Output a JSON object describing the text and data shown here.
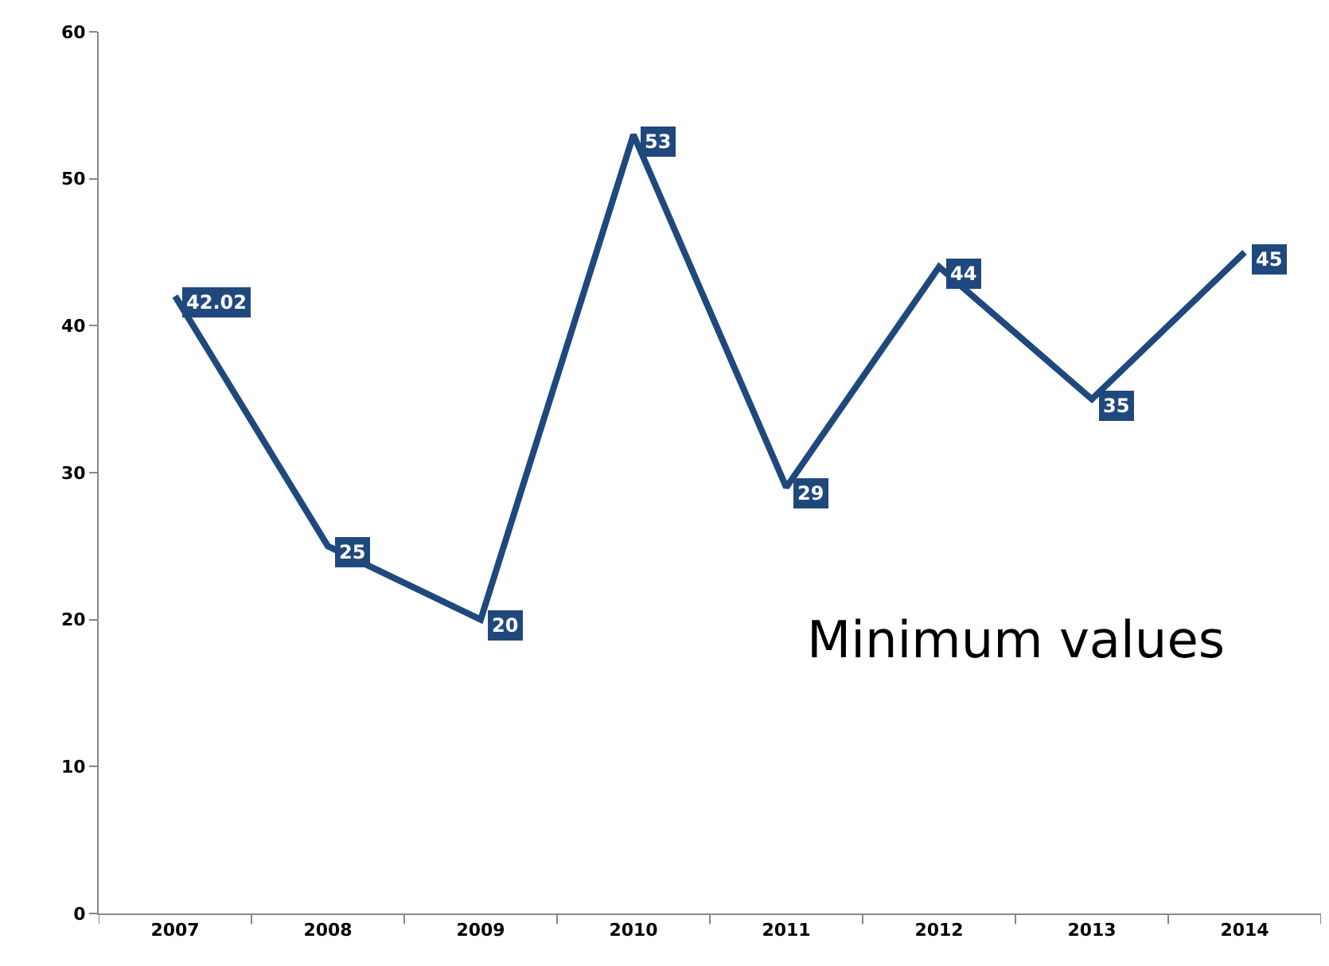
{
  "chart_data": {
    "type": "line",
    "title": "Minimum values",
    "categories": [
      "2007",
      "2008",
      "2009",
      "2010",
      "2011",
      "2012",
      "2013",
      "2014"
    ],
    "series": [
      {
        "color": "#1f497d",
        "values": [
          42.02,
          25,
          20,
          53,
          29,
          44,
          35,
          45
        ]
      }
    ],
    "ylim": [
      0,
      60
    ],
    "yticks": [
      0,
      10,
      20,
      30,
      40,
      50,
      60
    ],
    "legend": false,
    "marker": "none",
    "line_style": "solid",
    "data_labels": true
  }
}
